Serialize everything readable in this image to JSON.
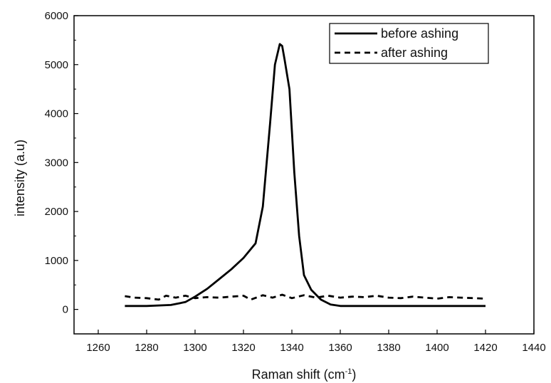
{
  "chart_data": {
    "type": "line",
    "xlabel": "Raman shift (cm",
    "xlabel_sup": "-1",
    "xlabel_close": ")",
    "ylabel": "intensity (a.u)",
    "xlim": [
      1250,
      1440
    ],
    "ylim": [
      -500,
      6000
    ],
    "xticks": [
      1260,
      1280,
      1300,
      1320,
      1340,
      1360,
      1380,
      1400,
      1420,
      1440
    ],
    "yticks": [
      0,
      1000,
      2000,
      3000,
      4000,
      5000,
      6000
    ],
    "grid": false,
    "legend": "top-right",
    "series": [
      {
        "name": "before ashing",
        "style": "solid",
        "color": "#000000",
        "x": [
          1271,
          1280,
          1290,
          1296,
          1300,
          1305,
          1310,
          1315,
          1320,
          1325,
          1328,
          1331,
          1333,
          1335,
          1336,
          1337,
          1339,
          1341,
          1343,
          1345,
          1348,
          1352,
          1356,
          1360,
          1370,
          1380,
          1400,
          1420
        ],
        "y": [
          70,
          70,
          90,
          150,
          260,
          420,
          620,
          820,
          1050,
          1350,
          2100,
          3800,
          5000,
          5420,
          5380,
          5100,
          4500,
          2800,
          1500,
          700,
          400,
          200,
          100,
          70,
          70,
          70,
          70,
          70
        ]
      },
      {
        "name": "after ashing",
        "style": "dashed",
        "color": "#000000",
        "x": [
          1271,
          1275,
          1280,
          1285,
          1288,
          1292,
          1296,
          1300,
          1305,
          1310,
          1315,
          1320,
          1323,
          1328,
          1332,
          1336,
          1340,
          1345,
          1350,
          1355,
          1360,
          1365,
          1370,
          1375,
          1380,
          1385,
          1390,
          1395,
          1400,
          1405,
          1410,
          1415,
          1420
        ],
        "y": [
          270,
          240,
          230,
          200,
          280,
          240,
          280,
          230,
          250,
          240,
          260,
          280,
          200,
          290,
          240,
          300,
          230,
          290,
          240,
          280,
          240,
          260,
          250,
          280,
          240,
          230,
          260,
          240,
          220,
          250,
          240,
          230,
          220
        ]
      }
    ]
  }
}
